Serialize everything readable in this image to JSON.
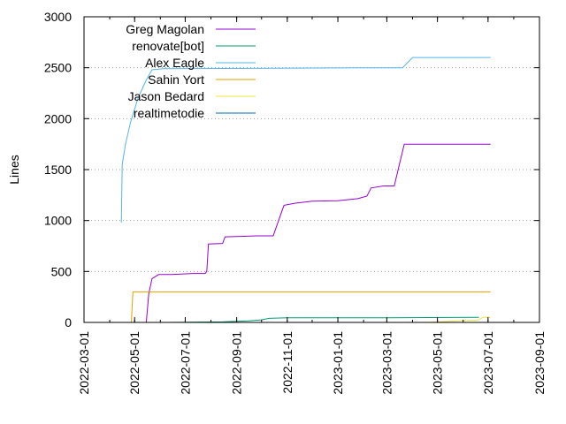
{
  "chart_data": {
    "type": "line",
    "title": "",
    "xlabel": "",
    "ylabel": "Lines",
    "x_type": "date",
    "xlim": [
      "2022-03-01",
      "2023-09-01"
    ],
    "ylim": [
      0,
      3000
    ],
    "y_ticks": [
      0,
      500,
      1000,
      1500,
      2000,
      2500,
      3000
    ],
    "x_ticks": [
      "2022-03-01",
      "2022-05-01",
      "2022-07-01",
      "2022-09-01",
      "2022-11-01",
      "2023-01-01",
      "2023-03-01",
      "2023-05-01",
      "2023-07-01",
      "2023-09-01"
    ],
    "grid": "horizontal dotted",
    "legend_position": "top-left",
    "series": [
      {
        "name": "Greg Magolan",
        "color": "#9400d3",
        "points": [
          [
            "2022-05-15",
            0
          ],
          [
            "2022-05-18",
            280
          ],
          [
            "2022-05-22",
            430
          ],
          [
            "2022-05-26",
            450
          ],
          [
            "2022-05-30",
            470
          ],
          [
            "2022-06-15",
            470
          ],
          [
            "2022-07-10",
            480
          ],
          [
            "2022-07-25",
            480
          ],
          [
            "2022-07-27",
            500
          ],
          [
            "2022-07-29",
            770
          ],
          [
            "2022-08-15",
            775
          ],
          [
            "2022-08-18",
            840
          ],
          [
            "2022-09-10",
            845
          ],
          [
            "2022-09-25",
            850
          ],
          [
            "2022-10-15",
            850
          ],
          [
            "2022-10-28",
            1150
          ],
          [
            "2022-11-10",
            1170
          ],
          [
            "2022-12-01",
            1190
          ],
          [
            "2023-01-01",
            1195
          ],
          [
            "2023-01-25",
            1215
          ],
          [
            "2023-02-05",
            1240
          ],
          [
            "2023-02-10",
            1320
          ],
          [
            "2023-02-25",
            1340
          ],
          [
            "2023-03-10",
            1340
          ],
          [
            "2023-03-22",
            1750
          ],
          [
            "2023-07-04",
            1750
          ]
        ]
      },
      {
        "name": "renovate[bot]",
        "color": "#009e73",
        "points": [
          [
            "2022-06-10",
            0
          ],
          [
            "2022-08-15",
            5
          ],
          [
            "2022-09-15",
            15
          ],
          [
            "2022-10-01",
            25
          ],
          [
            "2022-10-10",
            40
          ],
          [
            "2022-11-01",
            45
          ],
          [
            "2023-03-01",
            45
          ],
          [
            "2023-06-20",
            50
          ]
        ]
      },
      {
        "name": "Alex Eagle",
        "color": "#56b4e9",
        "points": [
          [
            "2022-04-15",
            980
          ],
          [
            "2022-04-16",
            1550
          ],
          [
            "2022-04-20",
            1750
          ],
          [
            "2022-04-26",
            1960
          ],
          [
            "2022-05-05",
            2200
          ],
          [
            "2022-05-15",
            2380
          ],
          [
            "2022-05-22",
            2480
          ],
          [
            "2022-06-05",
            2490
          ],
          [
            "2023-02-10",
            2500
          ],
          [
            "2023-03-20",
            2500
          ],
          [
            "2023-04-01",
            2600
          ],
          [
            "2023-07-04",
            2600
          ]
        ]
      },
      {
        "name": "Sahin Yort",
        "color": "#e69f00",
        "points": [
          [
            "2022-04-27",
            0
          ],
          [
            "2022-04-29",
            300
          ],
          [
            "2023-07-04",
            300
          ]
        ]
      },
      {
        "name": "Jason Bedard",
        "color": "#f0e442",
        "points": [
          [
            "2023-04-20",
            0
          ],
          [
            "2023-06-20",
            25
          ],
          [
            "2023-06-25",
            50
          ],
          [
            "2023-07-04",
            50
          ]
        ]
      },
      {
        "name": "realtimetodie",
        "color": "#0072b2",
        "points": []
      }
    ]
  }
}
